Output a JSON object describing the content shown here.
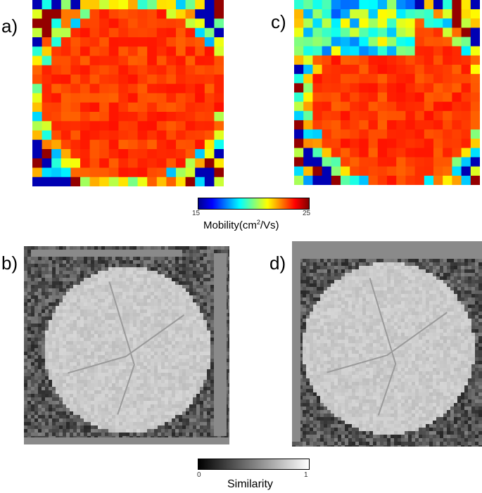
{
  "panels": {
    "a": {
      "label": "a)"
    },
    "b": {
      "label": "b)"
    },
    "c": {
      "label": "c)"
    },
    "d": {
      "label": "d)"
    }
  },
  "mobility_colorbar": {
    "min": "15",
    "max": "25",
    "title_prefix": "Mobility(cm",
    "title_sup": "2",
    "title_suffix": "/Vs)",
    "colormap": "jet"
  },
  "similarity_colorbar": {
    "min": "0",
    "max": "1",
    "title": "Similarity",
    "colormap": "gray"
  }
}
